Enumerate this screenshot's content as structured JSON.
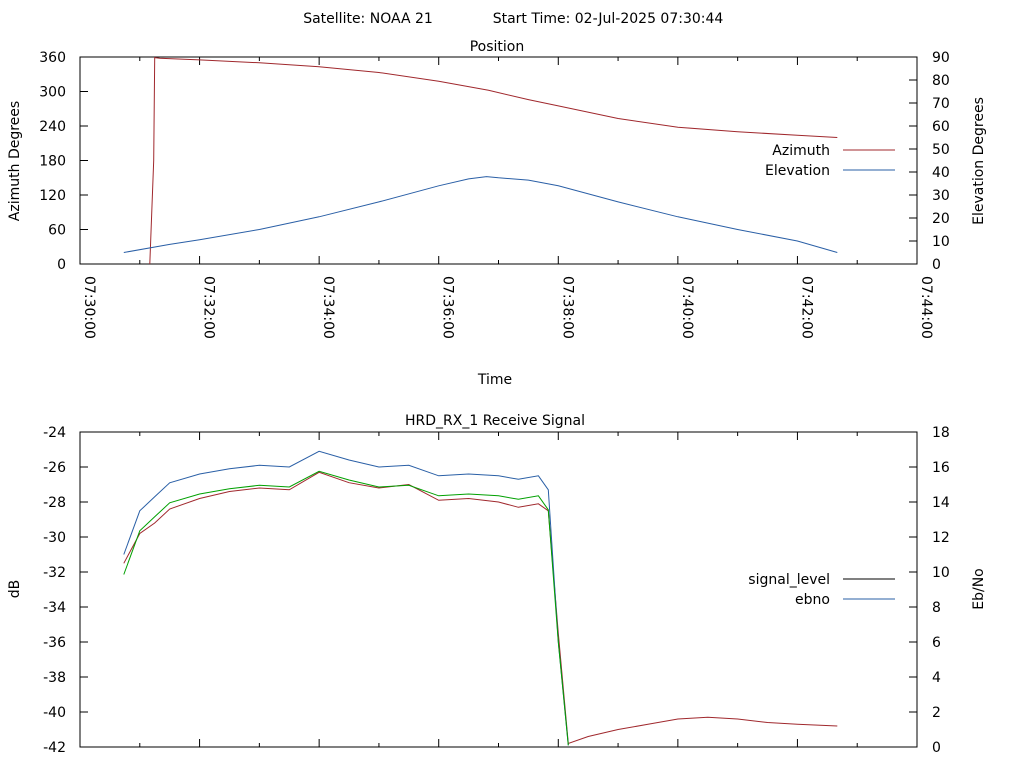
{
  "header": {
    "satellite_text": "Satellite: NOAA 21",
    "start_time_text": "Start Time: 02-Jul-2025 07:30:44"
  },
  "colors": {
    "azimuth": "#a0282d",
    "elevation": "#2a5fa6",
    "signal_level": "#a0282d",
    "ebno": "#2a5fa6",
    "green_trace": "#00a000",
    "axes": "#000000"
  },
  "chart_data": [
    {
      "type": "line",
      "title": "Position",
      "xlabel": "Time",
      "ylabel": "Azimuth Degrees",
      "y2label": "Elevation Degrees",
      "xlim": [
        "07:30:00",
        "07:44:00"
      ],
      "ylim": [
        0,
        360
      ],
      "y2lim": [
        0,
        90
      ],
      "x_tick_labels": [
        "07:30:00",
        "07:32:00",
        "07:34:00",
        "07:36:00",
        "07:38:00",
        "07:40:00",
        "07:42:00",
        "07:44:00"
      ],
      "y_tick_labels": [
        "0",
        "60",
        "120",
        "180",
        "240",
        "300",
        "360"
      ],
      "y2_tick_labels": [
        "0",
        "10",
        "20",
        "30",
        "40",
        "50",
        "60",
        "70",
        "80",
        "90"
      ],
      "grid": false,
      "legend_position": "right",
      "series": [
        {
          "name": "Azimuth",
          "axis": "y",
          "x": [
            "07:31:10",
            "07:31:14",
            "07:31:15",
            "07:31:20",
            "07:32:00",
            "07:33:00",
            "07:34:00",
            "07:35:00",
            "07:36:00",
            "07:36:50",
            "07:37:30",
            "07:38:00",
            "07:39:00",
            "07:40:00",
            "07:41:00",
            "07:42:00",
            "07:42:40"
          ],
          "values": [
            0,
            180,
            359,
            358,
            355,
            350,
            343,
            333,
            318,
            302,
            286,
            275,
            253,
            238,
            230,
            224,
            220
          ]
        },
        {
          "name": "Elevation",
          "axis": "y2",
          "x": [
            "07:30:44",
            "07:31:30",
            "07:32:00",
            "07:33:00",
            "07:34:00",
            "07:35:00",
            "07:36:00",
            "07:36:30",
            "07:36:48",
            "07:37:00",
            "07:37:30",
            "07:38:00",
            "07:39:00",
            "07:40:00",
            "07:41:00",
            "07:42:00",
            "07:42:40"
          ],
          "values": [
            5,
            8.5,
            10.5,
            15,
            20.5,
            27,
            34,
            37,
            38,
            37.5,
            36.5,
            34,
            27,
            20.5,
            15,
            10,
            5
          ]
        }
      ]
    },
    {
      "type": "line",
      "title": "HRD_RX_1 Receive Signal",
      "xlabel": "",
      "ylabel": "dB",
      "y2label": "Eb/No",
      "xlim": [
        "07:30:00",
        "07:44:00"
      ],
      "ylim": [
        -42,
        -24
      ],
      "y2lim": [
        0,
        18
      ],
      "y_tick_labels": [
        "-42",
        "-40",
        "-38",
        "-36",
        "-34",
        "-32",
        "-30",
        "-28",
        "-26",
        "-24"
      ],
      "y2_tick_labels": [
        "0",
        "2",
        "4",
        "6",
        "8",
        "10",
        "12",
        "14",
        "16",
        "18"
      ],
      "grid": false,
      "legend_position": "right",
      "series": [
        {
          "name": "signal_level",
          "axis": "y",
          "x": [
            "07:30:44",
            "07:31:00",
            "07:31:15",
            "07:31:30",
            "07:32:00",
            "07:32:30",
            "07:33:00",
            "07:33:30",
            "07:34:00",
            "07:34:30",
            "07:35:00",
            "07:35:30",
            "07:36:00",
            "07:36:30",
            "07:37:00",
            "07:37:20",
            "07:37:40",
            "07:37:50",
            "07:38:00",
            "07:38:10",
            "07:38:30",
            "07:39:00",
            "07:39:30",
            "07:40:00",
            "07:40:30",
            "07:41:00",
            "07:41:30",
            "07:42:00",
            "07:42:40"
          ],
          "values": [
            -31.5,
            -29.8,
            -29.2,
            -28.4,
            -27.8,
            -27.4,
            -27.2,
            -27.3,
            -26.3,
            -26.9,
            -27.2,
            -27.0,
            -27.9,
            -27.8,
            -28.0,
            -28.3,
            -28.1,
            -28.5,
            -35.5,
            -41.8,
            -41.4,
            -41.0,
            -40.7,
            -40.4,
            -40.3,
            -40.4,
            -40.6,
            -40.7,
            -40.8
          ]
        },
        {
          "name": "ebno",
          "axis": "y2",
          "x": [
            "07:30:44",
            "07:31:00",
            "07:31:15",
            "07:31:30",
            "07:32:00",
            "07:32:30",
            "07:33:00",
            "07:33:30",
            "07:34:00",
            "07:34:30",
            "07:35:00",
            "07:35:30",
            "07:36:00",
            "07:36:30",
            "07:37:00",
            "07:37:20",
            "07:37:40",
            "07:37:50",
            "07:38:00",
            "07:38:10"
          ],
          "values": [
            11.0,
            13.5,
            14.3,
            15.1,
            15.6,
            15.9,
            16.1,
            16.0,
            16.9,
            16.4,
            16.0,
            16.1,
            15.5,
            15.6,
            15.5,
            15.3,
            15.5,
            14.7,
            6.0,
            0.1
          ]
        }
      ]
    }
  ]
}
